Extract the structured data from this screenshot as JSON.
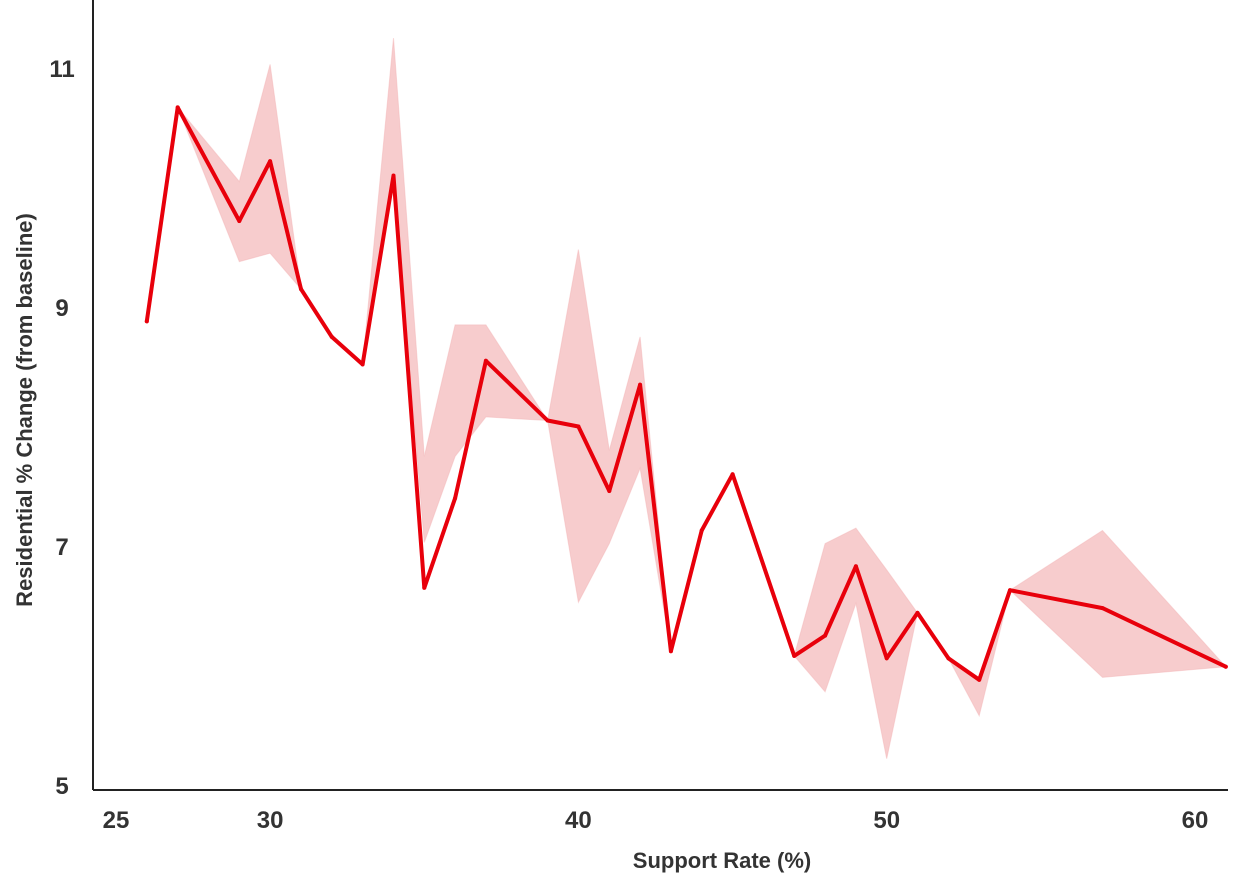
{
  "chart_data": {
    "type": "line",
    "xlabel": "Support Rate (%)",
    "ylabel": "Residential % Change (from baseline)",
    "xlim": [
      24,
      61
    ],
    "ylim": [
      5,
      11.6
    ],
    "xticks": [
      25,
      30,
      40,
      50,
      60
    ],
    "yticks": [
      5,
      7,
      9,
      11
    ],
    "grid": false,
    "legend": "none",
    "colors": {
      "line": "#e8000b",
      "band": "#f4b6b8"
    },
    "series": [
      {
        "x": [
          26,
          27,
          29,
          30,
          31,
          32,
          33,
          34,
          35,
          36,
          37,
          39,
          40,
          41,
          42,
          43,
          44,
          45,
          47,
          48,
          49,
          50,
          51,
          52,
          53,
          54,
          57,
          61
        ],
        "y": [
          8.88,
          10.67,
          9.72,
          10.22,
          9.15,
          8.75,
          8.52,
          10.1,
          6.65,
          7.4,
          8.55,
          8.05,
          8.0,
          7.46,
          8.35,
          6.12,
          7.13,
          7.6,
          6.08,
          6.25,
          6.83,
          6.06,
          6.44,
          6.06,
          5.88,
          6.63,
          6.48,
          5.99
        ],
        "ci_lower": [
          8.88,
          10.67,
          9.38,
          9.45,
          9.15,
          8.75,
          8.52,
          10.1,
          7.03,
          7.75,
          8.08,
          8.05,
          6.53,
          7.02,
          7.65,
          6.12,
          7.13,
          7.6,
          6.08,
          5.78,
          6.52,
          5.22,
          6.44,
          6.06,
          5.58,
          6.63,
          5.9,
          5.99
        ],
        "ci_upper": [
          8.88,
          10.67,
          10.05,
          11.03,
          9.15,
          8.75,
          8.52,
          11.25,
          7.75,
          8.85,
          8.85,
          8.05,
          9.48,
          7.8,
          8.75,
          6.12,
          7.13,
          7.6,
          6.08,
          7.02,
          7.15,
          6.8,
          6.44,
          6.06,
          5.9,
          6.63,
          7.13,
          5.99
        ]
      }
    ]
  }
}
